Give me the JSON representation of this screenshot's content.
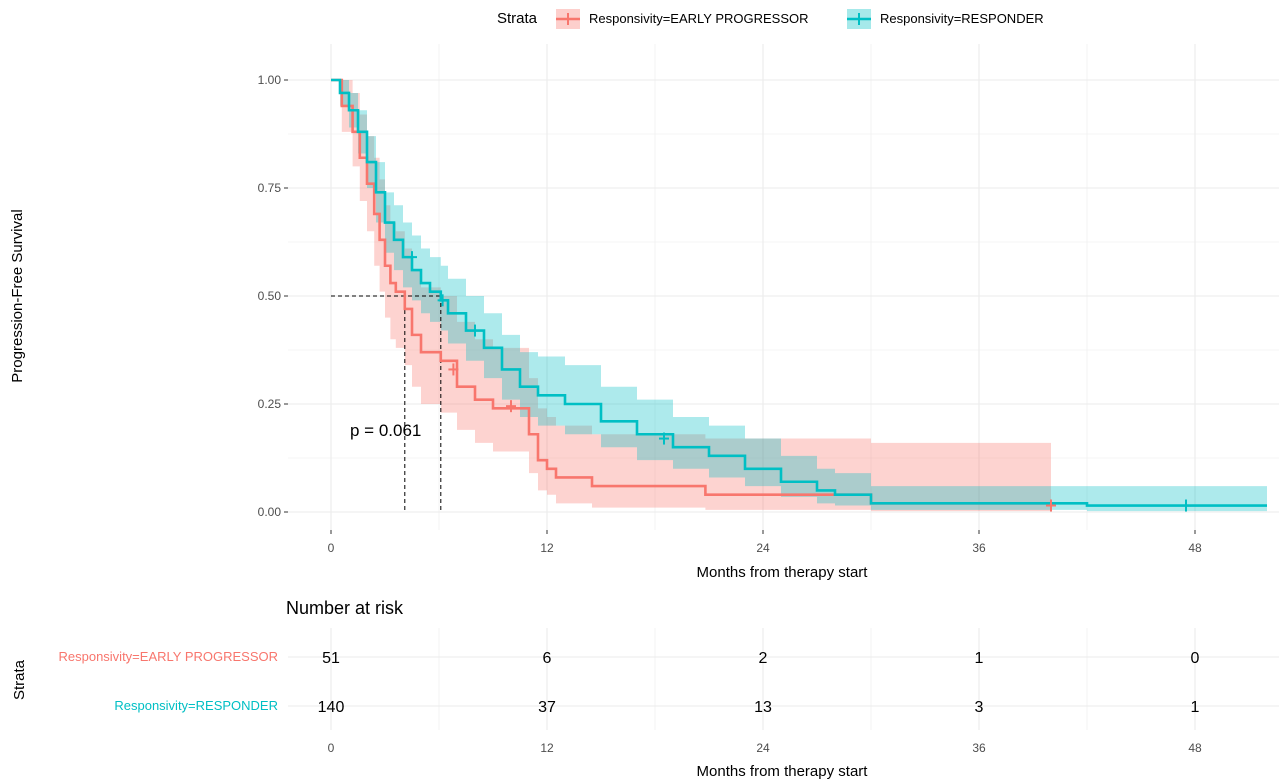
{
  "colors": {
    "early": "#F8766D",
    "responder": "#00BFC4",
    "grid": "#EBEBEB"
  },
  "chart_data": {
    "type": "line",
    "subtype": "kaplan-meier",
    "legend": {
      "title": "Strata",
      "placement": "top",
      "entries": [
        "Responsivity=EARLY PROGRESSOR",
        "Responsivity=RESPONDER"
      ]
    },
    "xlabel": "Months from therapy start",
    "ylabel": "Progression-Free Survival",
    "xlim": [
      0,
      52
    ],
    "ylim": [
      0,
      1
    ],
    "xticks": [
      0,
      12,
      24,
      36,
      48
    ],
    "xtick_labels": [
      "0",
      "12",
      "24",
      "36",
      "48"
    ],
    "yticks": [
      0,
      0.25,
      0.5,
      0.75,
      1.0
    ],
    "ytick_labels": [
      "0.00",
      "0.25",
      "0.50",
      "0.75",
      "1.00"
    ],
    "grid": true,
    "p_value_label": "p = 0.061",
    "median_line_y": 0.5,
    "medians": [
      4.1,
      6.1
    ],
    "series": [
      {
        "name": "Responsivity=EARLY PROGRESSOR",
        "step_x": [
          0,
          0.6,
          1.2,
          1.6,
          2.0,
          2.4,
          2.7,
          3.0,
          3.3,
          3.6,
          4.1,
          4.5,
          5.0,
          6.1,
          7.0,
          8.0,
          9.0,
          11.0,
          11.5,
          12.0,
          12.5,
          14.5,
          20.8,
          30.0,
          40.0
        ],
        "step_y": [
          1.0,
          0.94,
          0.88,
          0.82,
          0.76,
          0.69,
          0.63,
          0.57,
          0.53,
          0.51,
          0.47,
          0.41,
          0.37,
          0.35,
          0.29,
          0.26,
          0.24,
          0.18,
          0.12,
          0.1,
          0.08,
          0.06,
          0.04,
          0.02,
          0.02
        ],
        "lower": [
          1.0,
          0.88,
          0.8,
          0.72,
          0.65,
          0.57,
          0.51,
          0.45,
          0.4,
          0.38,
          0.34,
          0.29,
          0.25,
          0.23,
          0.19,
          0.16,
          0.14,
          0.09,
          0.05,
          0.04,
          0.02,
          0.01,
          0.005,
          0.002,
          0.002
        ],
        "upper": [
          1.0,
          1.0,
          0.97,
          0.92,
          0.87,
          0.82,
          0.77,
          0.71,
          0.67,
          0.65,
          0.61,
          0.56,
          0.52,
          0.5,
          0.44,
          0.4,
          0.38,
          0.31,
          0.24,
          0.22,
          0.2,
          0.18,
          0.17,
          0.16,
          0.16
        ],
        "censor_x": [
          6.8,
          10.0,
          40.0
        ],
        "censor_y": [
          0.33,
          0.245,
          0.015
        ]
      },
      {
        "name": "Responsivity=RESPONDER",
        "step_x": [
          0,
          0.5,
          1.0,
          1.5,
          2.0,
          2.5,
          3.0,
          3.5,
          4.0,
          4.5,
          5.0,
          5.5,
          6.1,
          6.5,
          7.5,
          8.5,
          9.5,
          10.5,
          11.5,
          13.0,
          15.0,
          17.0,
          19.0,
          21.0,
          23.0,
          25.0,
          27.0,
          28.0,
          30.0,
          42.0,
          52.0
        ],
        "step_y": [
          1.0,
          0.97,
          0.93,
          0.88,
          0.81,
          0.74,
          0.67,
          0.63,
          0.59,
          0.56,
          0.53,
          0.51,
          0.49,
          0.46,
          0.42,
          0.38,
          0.33,
          0.29,
          0.27,
          0.25,
          0.21,
          0.18,
          0.15,
          0.13,
          0.1,
          0.07,
          0.05,
          0.04,
          0.02,
          0.015,
          0.015
        ],
        "lower": [
          1.0,
          0.94,
          0.89,
          0.83,
          0.75,
          0.67,
          0.6,
          0.56,
          0.52,
          0.49,
          0.46,
          0.44,
          0.42,
          0.39,
          0.35,
          0.31,
          0.26,
          0.22,
          0.2,
          0.18,
          0.15,
          0.12,
          0.1,
          0.08,
          0.06,
          0.035,
          0.02,
          0.015,
          0.005,
          0.002,
          0.002
        ],
        "upper": [
          1.0,
          1.0,
          0.97,
          0.93,
          0.87,
          0.81,
          0.74,
          0.71,
          0.67,
          0.64,
          0.61,
          0.59,
          0.57,
          0.54,
          0.5,
          0.46,
          0.41,
          0.37,
          0.36,
          0.34,
          0.29,
          0.26,
          0.22,
          0.2,
          0.17,
          0.13,
          0.1,
          0.09,
          0.06,
          0.06,
          0.06
        ],
        "censor_x": [
          4.5,
          6.2,
          8.0,
          18.5,
          47.5
        ],
        "censor_y": [
          0.59,
          0.49,
          0.42,
          0.17,
          0.015
        ]
      }
    ]
  },
  "risk_table": {
    "title": "Number at risk",
    "ylabel": "Strata",
    "xlabel": "Months from therapy start",
    "times": [
      0,
      12,
      24,
      36,
      48
    ],
    "time_labels": [
      "0",
      "12",
      "24",
      "36",
      "48"
    ],
    "rows": [
      {
        "label": "Responsivity=EARLY PROGRESSOR",
        "counts": [
          "51",
          "6",
          "2",
          "1",
          "0"
        ]
      },
      {
        "label": "Responsivity=RESPONDER",
        "counts": [
          "140",
          "37",
          "13",
          "3",
          "1"
        ]
      }
    ]
  }
}
